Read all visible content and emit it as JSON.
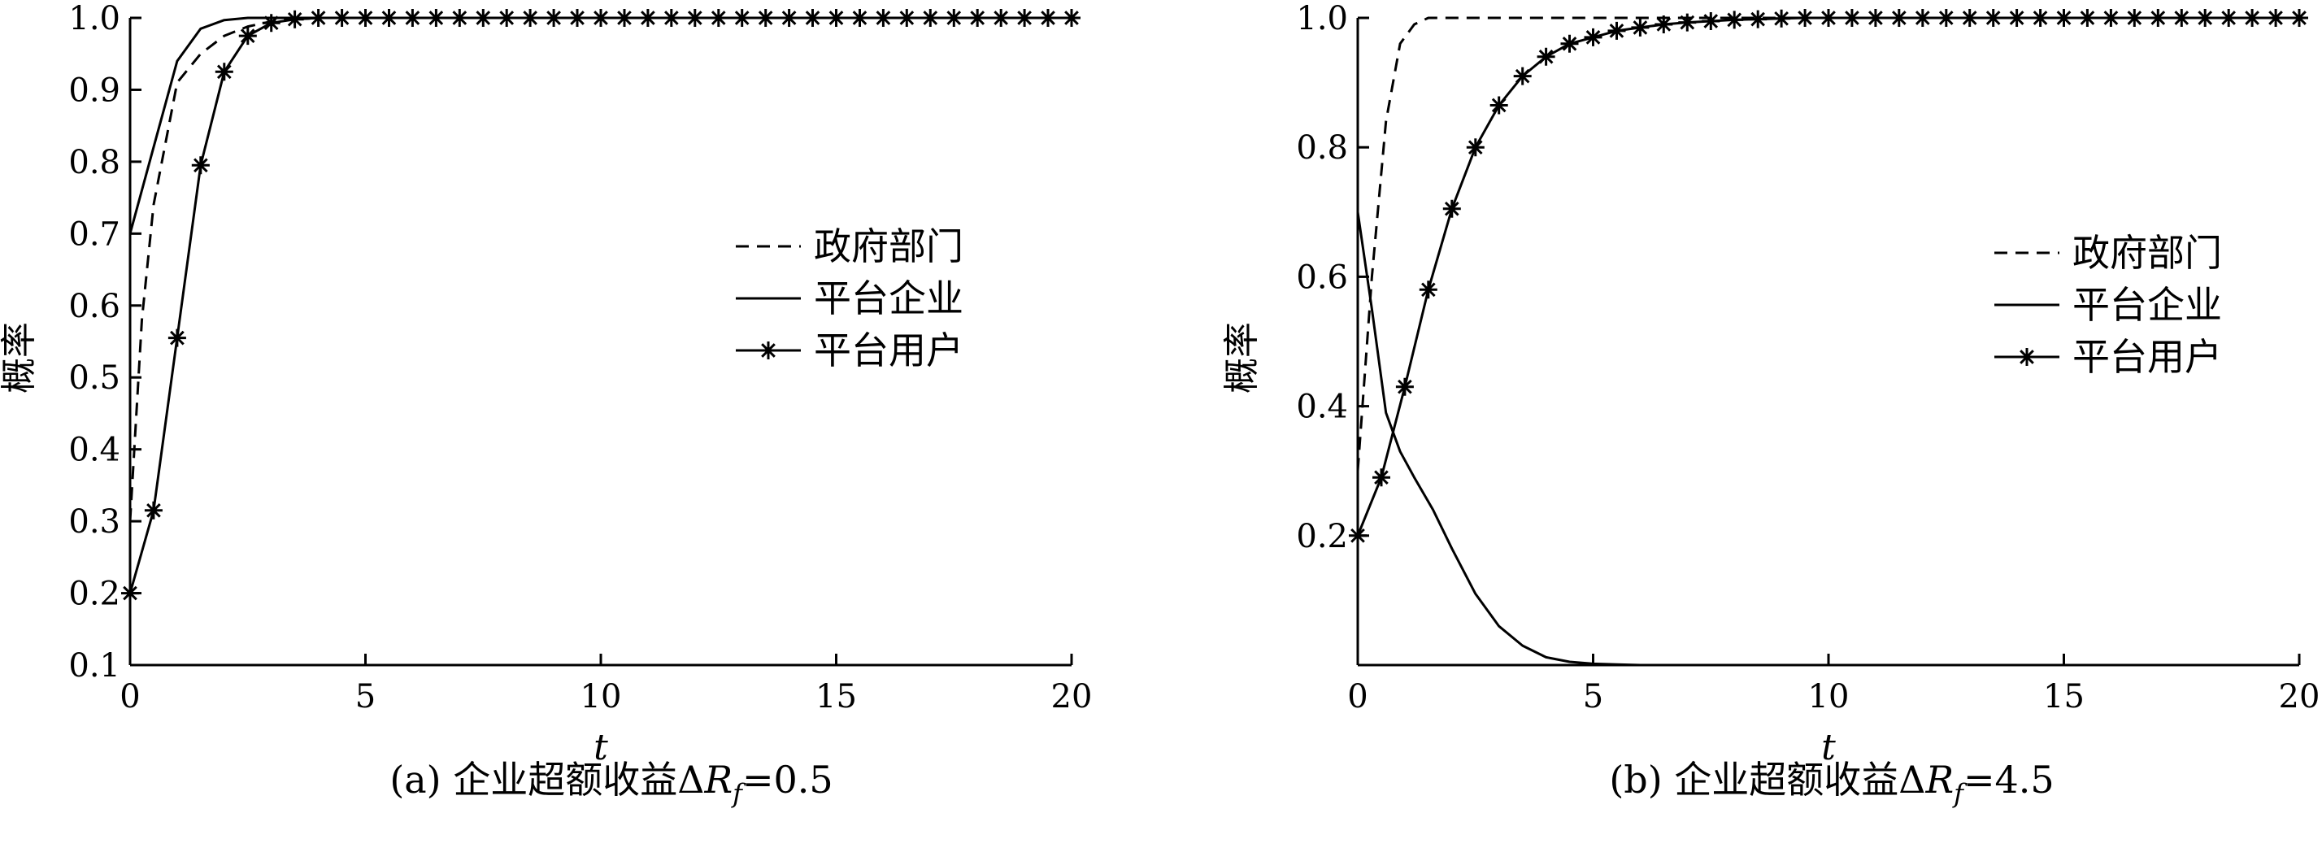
{
  "chart_data": [
    {
      "type": "line",
      "panel": "a",
      "xlabel": "t",
      "ylabel": "概率",
      "xlim": [
        0,
        20
      ],
      "ylim": [
        0.1,
        1.0
      ],
      "xticks": [
        0,
        5,
        10,
        15,
        20
      ],
      "xtick_labels": [
        "0",
        "5",
        "10",
        "15",
        "20"
      ],
      "yticks": [
        0.1,
        0.2,
        0.3,
        0.4,
        0.5,
        0.6,
        0.7,
        0.8,
        0.9,
        1.0
      ],
      "ytick_labels": [
        "0.1",
        "0.2",
        "0.3",
        "0.4",
        "0.5",
        "0.6",
        "0.7",
        "0.8",
        "0.9",
        "1.0"
      ],
      "caption": {
        "prefix": "(a) 企业超额收益Δ",
        "var": "R",
        "sub": "f",
        "suffix": "=0.5"
      },
      "legend": {
        "position": "middle-right"
      },
      "series": [
        {
          "name": "政府部门",
          "style": "dashed",
          "x": [
            0,
            0.25,
            0.5,
            1.0,
            1.5,
            2.0,
            2.5,
            3.0,
            3.5,
            4.0,
            20
          ],
          "y": [
            0.3,
            0.58,
            0.74,
            0.91,
            0.95,
            0.975,
            0.988,
            0.995,
            0.998,
            1.0,
            1.0
          ]
        },
        {
          "name": "平台企业",
          "style": "solid",
          "x": [
            0,
            0.5,
            1.0,
            1.5,
            2.0,
            2.5,
            3.0,
            3.5,
            20
          ],
          "y": [
            0.7,
            0.82,
            0.94,
            0.985,
            0.997,
            1.0,
            1.0,
            1.0,
            1.0
          ]
        },
        {
          "name": "平台用户",
          "style": "solid-star",
          "x": [
            0,
            0.5,
            1.0,
            1.5,
            2.0,
            2.5,
            3.0,
            3.5,
            4.0,
            4.5,
            5.0,
            5.5,
            6.0,
            6.5,
            7.0,
            7.5,
            8.0,
            8.5,
            9.0,
            9.5,
            10.0,
            10.5,
            11.0,
            11.5,
            12.0,
            12.5,
            13.0,
            13.5,
            14.0,
            14.5,
            15.0,
            15.5,
            16.0,
            16.5,
            17.0,
            17.5,
            18.0,
            18.5,
            19.0,
            19.5,
            20.0
          ],
          "y": [
            0.2,
            0.315,
            0.555,
            0.795,
            0.925,
            0.975,
            0.993,
            0.998,
            1.0,
            1.0,
            1.0,
            1.0,
            1.0,
            1.0,
            1.0,
            1.0,
            1.0,
            1.0,
            1.0,
            1.0,
            1.0,
            1.0,
            1.0,
            1.0,
            1.0,
            1.0,
            1.0,
            1.0,
            1.0,
            1.0,
            1.0,
            1.0,
            1.0,
            1.0,
            1.0,
            1.0,
            1.0,
            1.0,
            1.0,
            1.0,
            1.0
          ]
        }
      ]
    },
    {
      "type": "line",
      "panel": "b",
      "xlabel": "t",
      "ylabel": "概率",
      "xlim": [
        0,
        20
      ],
      "ylim": [
        0.0,
        1.0
      ],
      "xticks": [
        0,
        5,
        10,
        15,
        20
      ],
      "xtick_labels": [
        "0",
        "5",
        "10",
        "15",
        "20"
      ],
      "yticks": [
        0.2,
        0.4,
        0.6,
        0.8,
        1.0
      ],
      "ytick_labels": [
        "0.2",
        "0.4",
        "0.6",
        "0.8",
        "1.0"
      ],
      "caption": {
        "prefix": "(b) 企业超额收益Δ",
        "var": "R",
        "sub": "f",
        "suffix": "=4.5"
      },
      "legend": {
        "position": "middle-right"
      },
      "series": [
        {
          "name": "政府部门",
          "style": "dashed",
          "x": [
            0,
            0.3,
            0.6,
            0.9,
            1.2,
            1.5,
            2.0,
            20
          ],
          "y": [
            0.3,
            0.6,
            0.84,
            0.96,
            0.99,
            1.0,
            1.0,
            1.0
          ]
        },
        {
          "name": "平台企业",
          "style": "solid",
          "x": [
            0,
            0.3,
            0.6,
            0.9,
            1.2,
            1.6,
            2.0,
            2.5,
            3.0,
            3.5,
            4.0,
            4.5,
            5.0,
            5.5,
            6.0,
            20
          ],
          "y": [
            0.7,
            0.55,
            0.39,
            0.33,
            0.29,
            0.24,
            0.18,
            0.11,
            0.06,
            0.03,
            0.012,
            0.005,
            0.002,
            0.001,
            0.0,
            0.0
          ]
        },
        {
          "name": "平台用户",
          "style": "solid-star",
          "x": [
            0,
            0.5,
            1.0,
            1.5,
            2.0,
            2.5,
            3.0,
            3.5,
            4.0,
            4.5,
            5.0,
            5.5,
            6.0,
            6.5,
            7.0,
            7.5,
            8.0,
            8.5,
            9.0,
            9.5,
            10.0,
            10.5,
            11.0,
            11.5,
            12.0,
            12.5,
            13.0,
            13.5,
            14.0,
            14.5,
            15.0,
            15.5,
            16.0,
            16.5,
            17.0,
            17.5,
            18.0,
            18.5,
            19.0,
            19.5,
            20.0
          ],
          "y": [
            0.2,
            0.29,
            0.43,
            0.58,
            0.705,
            0.8,
            0.865,
            0.91,
            0.94,
            0.96,
            0.97,
            0.98,
            0.985,
            0.99,
            0.993,
            0.995,
            0.997,
            0.998,
            0.999,
            1.0,
            1.0,
            1.0,
            1.0,
            1.0,
            1.0,
            1.0,
            1.0,
            1.0,
            1.0,
            1.0,
            1.0,
            1.0,
            1.0,
            1.0,
            1.0,
            1.0,
            1.0,
            1.0,
            1.0,
            1.0,
            1.0
          ]
        }
      ]
    }
  ]
}
